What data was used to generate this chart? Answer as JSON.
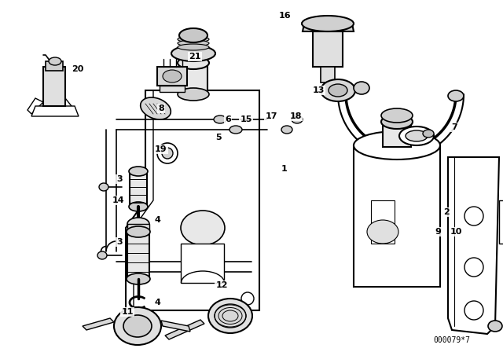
{
  "background_color": "#ffffff",
  "line_color": "#000000",
  "diagram_id": "000079*7",
  "fig_w": 6.4,
  "fig_h": 4.48,
  "dpi": 100
}
